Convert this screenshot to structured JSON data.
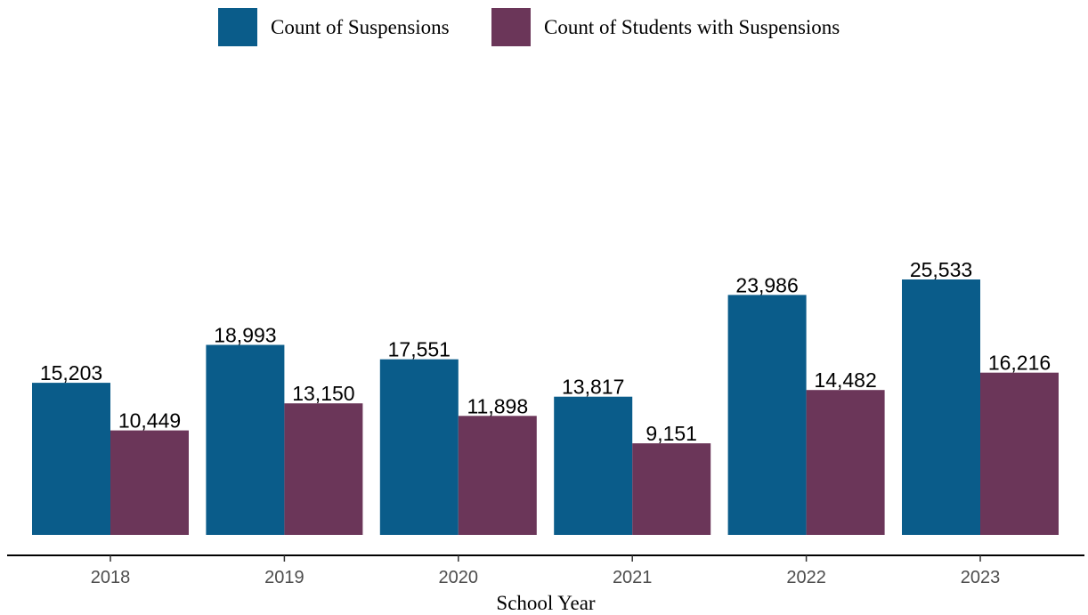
{
  "chart_data": {
    "type": "bar",
    "categories": [
      "2018",
      "2019",
      "2020",
      "2021",
      "2022",
      "2023"
    ],
    "series": [
      {
        "name": "Count of Suspensions",
        "color": "#0a5c8a",
        "values": [
          15203,
          18993,
          17551,
          13817,
          23986,
          25533
        ],
        "labels": [
          "15,203",
          "18,993",
          "17,551",
          "13,817",
          "23,986",
          "25,533"
        ]
      },
      {
        "name": "Count of Students with Suspensions",
        "color": "#6b3659",
        "values": [
          10449,
          13150,
          11898,
          9151,
          14482,
          16216
        ],
        "labels": [
          "10,449",
          "13,150",
          "11,898",
          "9,151",
          "14,482",
          "16,216"
        ]
      }
    ],
    "xlabel": "School Year",
    "ylabel": "",
    "ylim": [
      0,
      26000
    ],
    "legend_position": "top",
    "grid": false
  }
}
